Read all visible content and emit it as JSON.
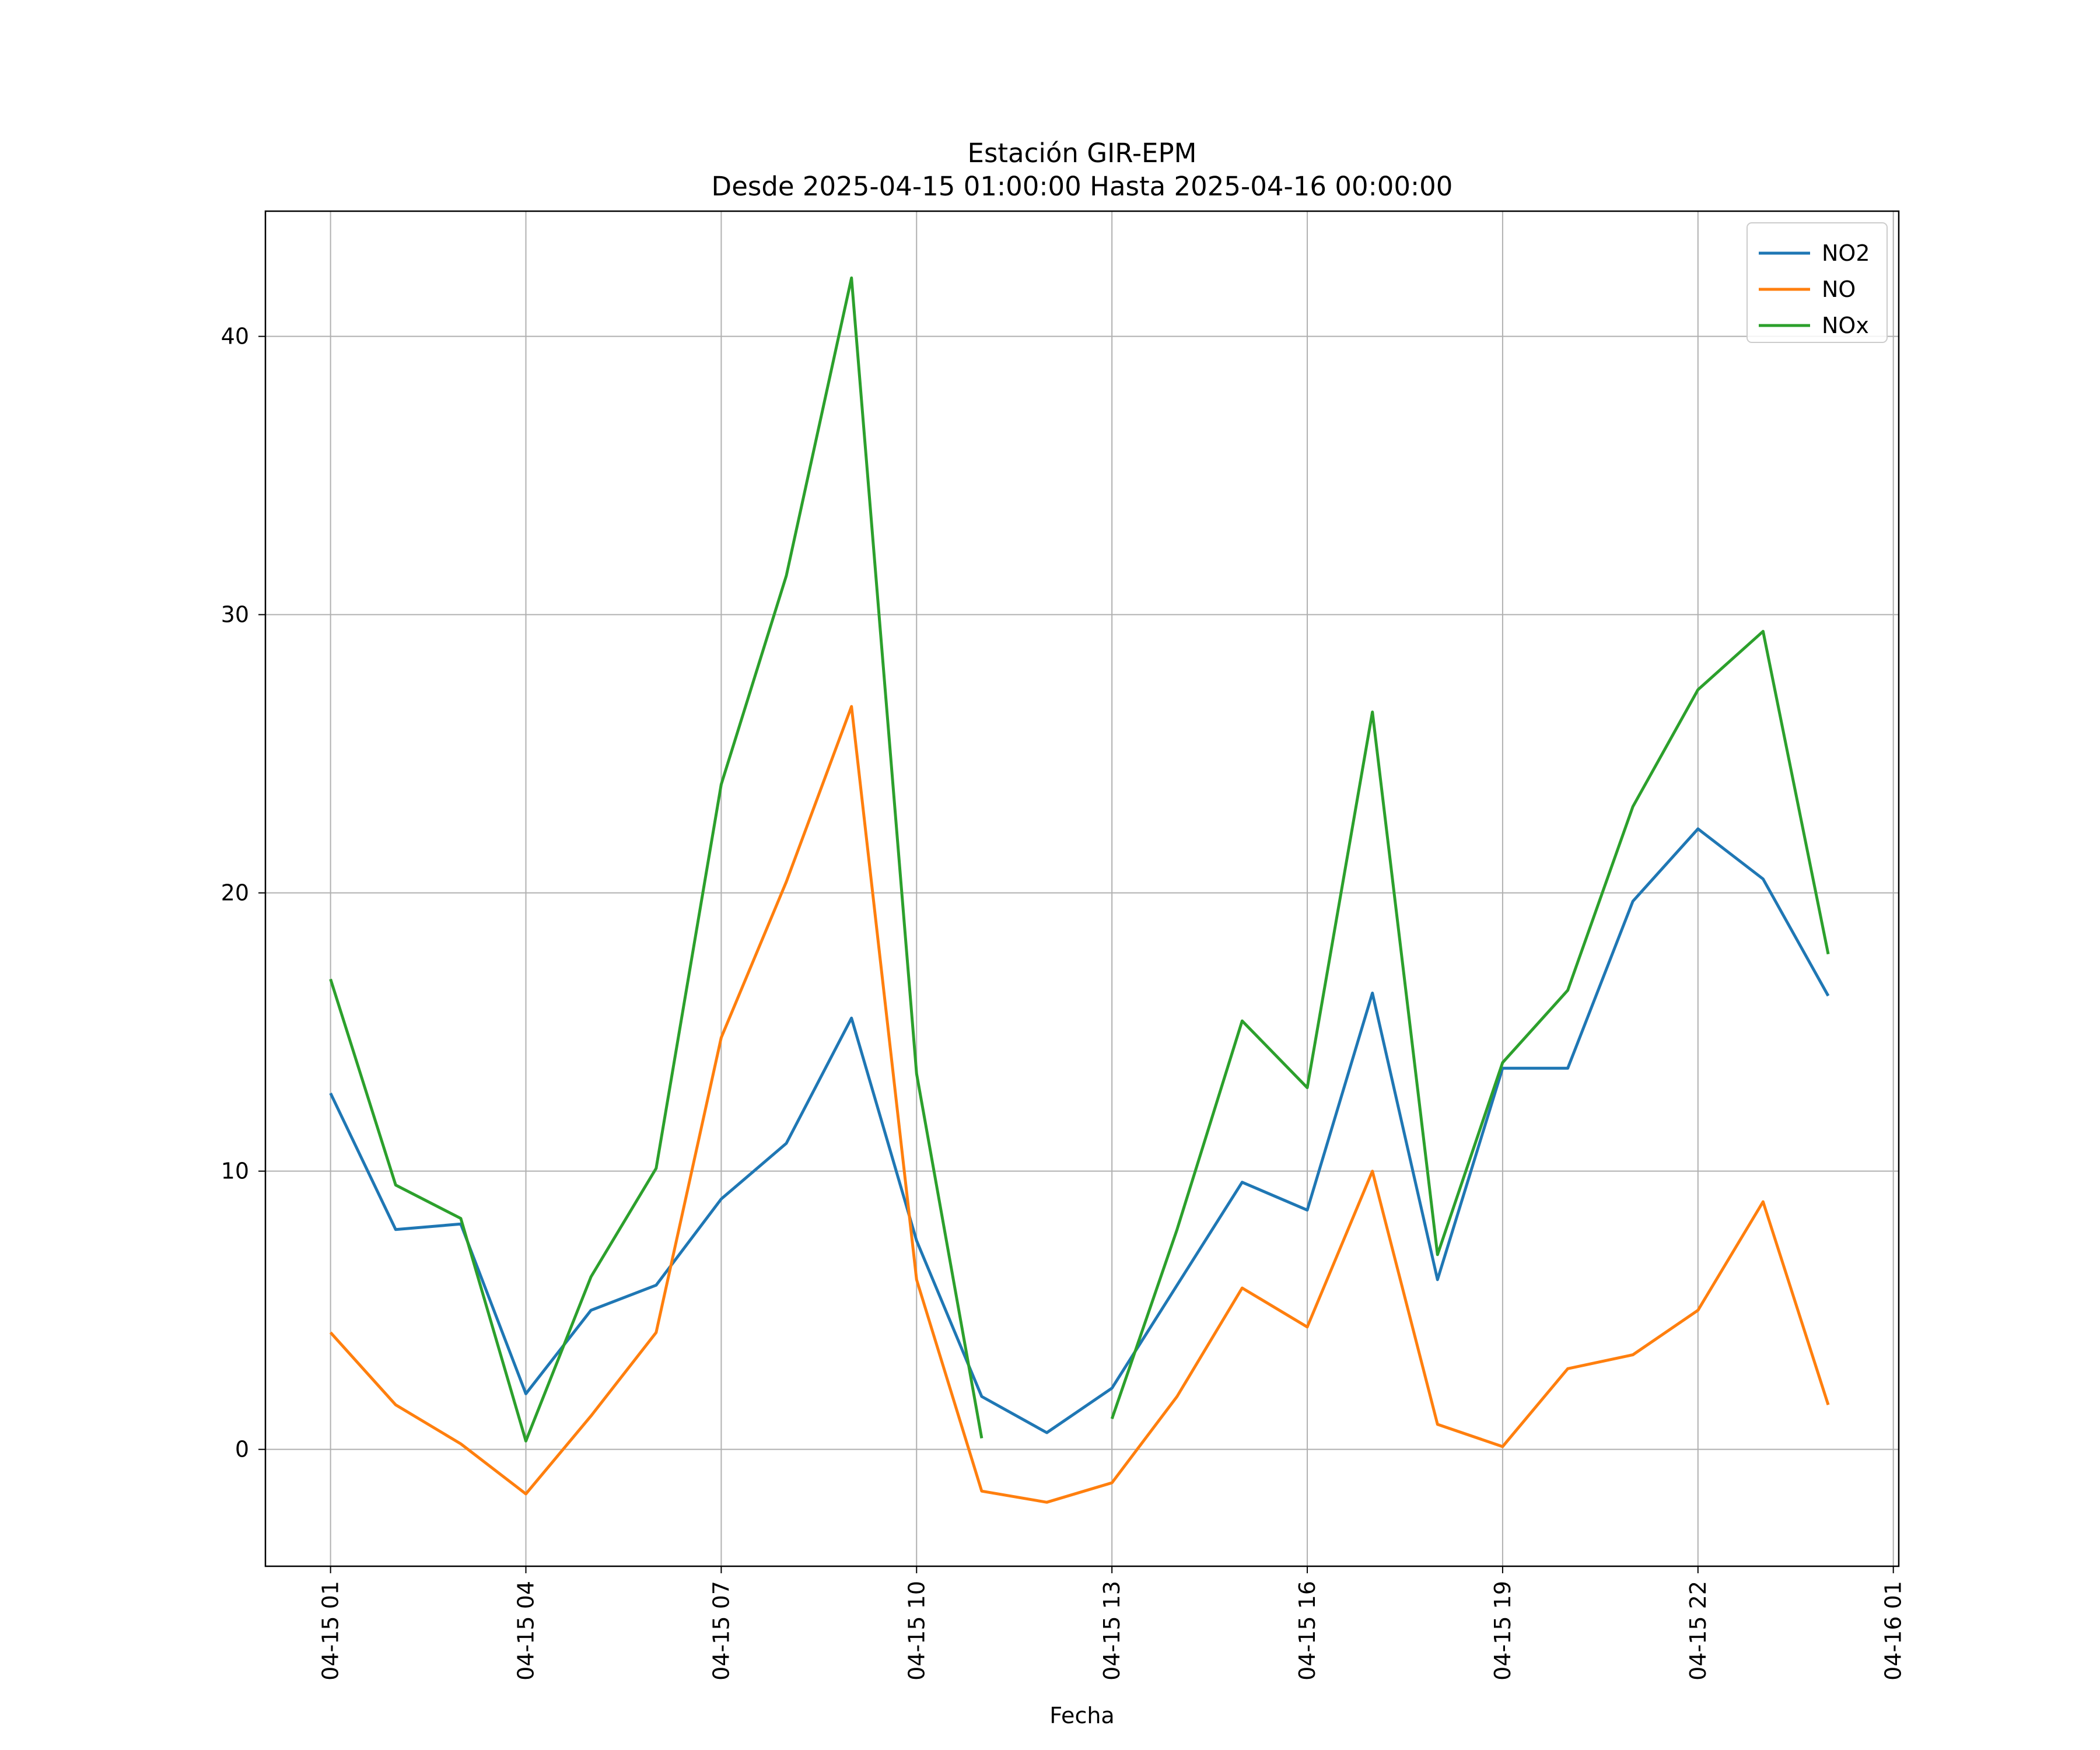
{
  "chart_data": {
    "type": "line",
    "title": "Estación GIR-EPM",
    "subtitle": "Desde 2025-04-15 01:00:00 Hasta 2025-04-16 00:00:00",
    "xlabel": "Fecha",
    "ylabel": "",
    "x": [
      "2025-04-15 01:00",
      "2025-04-15 02:00",
      "2025-04-15 03:00",
      "2025-04-15 04:00",
      "2025-04-15 05:00",
      "2025-04-15 06:00",
      "2025-04-15 07:00",
      "2025-04-15 08:00",
      "2025-04-15 09:00",
      "2025-04-15 10:00",
      "2025-04-15 11:00",
      "2025-04-15 12:00",
      "2025-04-15 13:00",
      "2025-04-15 14:00",
      "2025-04-15 15:00",
      "2025-04-15 16:00",
      "2025-04-15 17:00",
      "2025-04-15 18:00",
      "2025-04-15 19:00",
      "2025-04-15 20:00",
      "2025-04-15 21:00",
      "2025-04-15 22:00",
      "2025-04-15 23:00",
      "2025-04-16 00:00"
    ],
    "xlim": [
      "2025-04-15 00:00",
      "2025-04-16 01:05"
    ],
    "xticks": [
      {
        "x": "2025-04-15 01:00",
        "label": "04-15 01"
      },
      {
        "x": "2025-04-15 04:00",
        "label": "04-15 04"
      },
      {
        "x": "2025-04-15 07:00",
        "label": "04-15 07"
      },
      {
        "x": "2025-04-15 10:00",
        "label": "04-15 10"
      },
      {
        "x": "2025-04-15 13:00",
        "label": "04-15 13"
      },
      {
        "x": "2025-04-15 16:00",
        "label": "04-15 16"
      },
      {
        "x": "2025-04-15 19:00",
        "label": "04-15 19"
      },
      {
        "x": "2025-04-15 22:00",
        "label": "04-15 22"
      },
      {
        "x": "2025-04-16 01:00",
        "label": "04-16 01"
      }
    ],
    "ylim": [
      -4.2,
      44.5
    ],
    "yticks": [
      0,
      10,
      20,
      30,
      40
    ],
    "grid": true,
    "legend_position": "top-right",
    "series": [
      {
        "name": "NO2",
        "color": "#1f77b4",
        "values": [
          12.8,
          7.9,
          8.1,
          2.0,
          5.0,
          5.9,
          9.0,
          11.0,
          15.5,
          7.5,
          1.9,
          0.6,
          2.2,
          5.9,
          9.6,
          8.6,
          16.4,
          6.1,
          13.7,
          13.7,
          19.7,
          22.3,
          20.5,
          16.3
        ]
      },
      {
        "name": "NO",
        "color": "#ff7f0e",
        "values": [
          4.2,
          1.6,
          0.2,
          -1.6,
          1.2,
          4.2,
          14.8,
          20.4,
          26.7,
          6.1,
          -1.5,
          -1.9,
          -1.2,
          1.9,
          5.8,
          4.4,
          10.0,
          0.9,
          0.1,
          2.9,
          3.4,
          5.0,
          8.9,
          1.6
        ]
      },
      {
        "name": "NOx",
        "color": "#2ca02c",
        "values": [
          16.9,
          9.5,
          8.3,
          0.3,
          6.2,
          10.1,
          23.9,
          31.4,
          42.1,
          13.5,
          0.4,
          null,
          1.1,
          7.9,
          15.4,
          13.0,
          26.5,
          7.0,
          13.9,
          16.5,
          23.1,
          27.3,
          29.4,
          17.8
        ]
      }
    ]
  }
}
